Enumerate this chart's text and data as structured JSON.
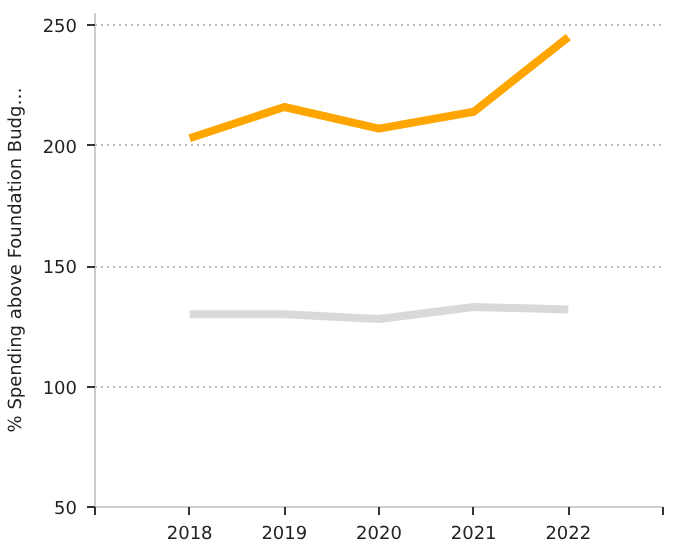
{
  "chart_data": {
    "type": "line",
    "ylabel": "% Spending above Foundation Budg…",
    "x": [
      2018,
      2019,
      2020,
      2021,
      2022
    ],
    "series": [
      {
        "color": "#ffa500",
        "values": [
          203,
          216,
          207,
          214,
          245
        ]
      },
      {
        "color": "#d9d9d9",
        "values": [
          130,
          130,
          128,
          133,
          132
        ]
      }
    ],
    "xlim": [
      2017,
      2023
    ],
    "xticks": [
      {
        "value": 2017,
        "label": null
      },
      2018,
      2019,
      2020,
      2021,
      2022,
      {
        "value": 2023,
        "label": null
      }
    ],
    "ylim": [
      50,
      255
    ],
    "yticks": [
      50,
      100,
      150,
      200,
      250
    ],
    "grid": "y",
    "marker": "none",
    "line_style": "solid"
  }
}
